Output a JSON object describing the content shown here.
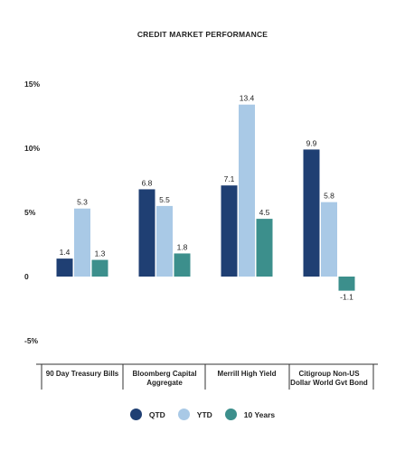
{
  "chart_data": {
    "type": "bar",
    "title": "CREDIT MARKET PERFORMANCE",
    "xlabel": "",
    "ylabel": "",
    "ylim": [
      -5,
      15
    ],
    "yticks": [
      15,
      10,
      5,
      0,
      -5
    ],
    "ytick_labels": [
      "15%",
      "10%",
      "5%",
      "0",
      "-5%"
    ],
    "grid": false,
    "legend_position": "bottom",
    "categories": [
      [
        "90 Day Treasury Bills"
      ],
      [
        "Bloomberg Capital",
        "Aggregate"
      ],
      [
        "Merrill High Yield"
      ],
      [
        "Citigroup Non-US",
        "Dollar World Gvt Bond"
      ]
    ],
    "series": [
      {
        "name": "QTD",
        "color": "#1f3f73",
        "values": [
          1.4,
          6.8,
          7.1,
          9.9
        ]
      },
      {
        "name": "YTD",
        "color": "#a9c9e6",
        "values": [
          5.3,
          5.5,
          13.4,
          5.8
        ]
      },
      {
        "name": "10 Years",
        "color": "#3c8f8c",
        "values": [
          1.3,
          1.8,
          4.5,
          -1.1
        ]
      }
    ]
  }
}
